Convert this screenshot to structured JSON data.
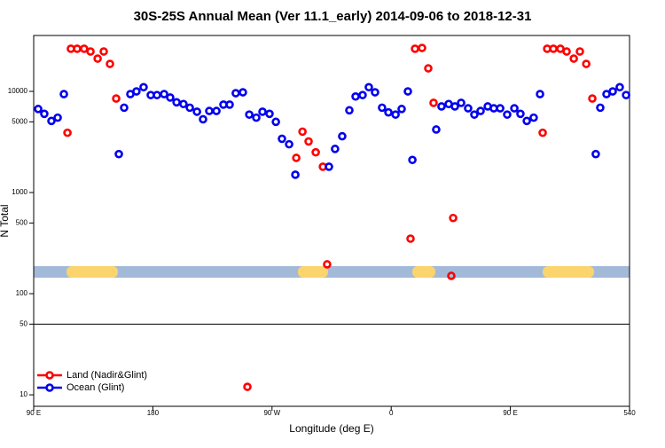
{
  "chart_data": {
    "type": "scatter",
    "title": "30S-25S Annual Mean (Ver 11.1_early)   2014-09-06 to 2018-12-31",
    "x_label": "Longitude (deg E)",
    "y_label": "N Total",
    "log_y": true,
    "legend": "bottom-left",
    "xlim": [
      90,
      540
    ],
    "xticks": [
      {
        "value": 90,
        "label": "90 E"
      },
      180,
      {
        "value": 270,
        "label": "90 W"
      },
      {
        "value": 360,
        "label": "0"
      },
      {
        "value": 450,
        "label": "90 E"
      },
      540
    ],
    "ylim": [
      7.7,
      35700
    ],
    "yticks": [
      10,
      50,
      100,
      500,
      1000,
      5000,
      10000
    ],
    "hlines": [
      50
    ],
    "series": [
      {
        "name": "Land (Nadir&Glint)",
        "color": "#ff0000",
        "x": [
          115.5,
          118.1,
          122.8,
          128.1,
          132.9,
          138.3,
          142.9,
          147.6,
          152.3,
          251.4,
          288.3,
          293,
          297.6,
          303,
          308.4,
          311.6,
          374.6,
          378,
          383.3,
          388,
          392,
          405.4,
          406.8,
          474.4,
          477.8,
          482.5,
          487.8,
          492.5,
          497.9,
          502.5,
          507.3,
          511.9
        ],
        "values": [
          3900,
          26400,
          26400,
          26400,
          24800,
          21100,
          24800,
          18700,
          8500,
          12,
          2200,
          4000,
          3200,
          2500,
          1800,
          195,
          350,
          26400,
          26900,
          16900,
          7700,
          150,
          560,
          3900,
          26400,
          26400,
          26400,
          24800,
          21100,
          24800,
          18700,
          8500
        ]
      },
      {
        "name": "Ocean (Glint)",
        "color": "#0000ee",
        "x": [
          93.4,
          98,
          103.4,
          108.1,
          112.8,
          154.3,
          158.3,
          163,
          167.6,
          173,
          178.4,
          183.1,
          188.5,
          193.1,
          197.9,
          203.1,
          207.9,
          213.3,
          217.9,
          222.6,
          228,
          233.3,
          238,
          242.6,
          248,
          252.8,
          258.1,
          262.8,
          268.1,
          272.9,
          277.5,
          282.9,
          287.6,
          313,
          317.6,
          323,
          328.4,
          333.1,
          338.4,
          343.1,
          347.8,
          353.1,
          357.9,
          363.3,
          367.9,
          372.6,
          376,
          394,
          398,
          403.4,
          408.1,
          412.8,
          418.1,
          422.8,
          427.5,
          432.9,
          437.5,
          442.3,
          447.6,
          453,
          457.6,
          462.4,
          467.6,
          472.4,
          514.5,
          517.9,
          522.6,
          527.3,
          532.6,
          537.4
        ],
        "values": [
          6700,
          6000,
          5100,
          5500,
          9400,
          2400,
          6900,
          9400,
          10000,
          11000,
          9200,
          9200,
          9400,
          8700,
          7800,
          7500,
          6900,
          6300,
          5300,
          6400,
          6400,
          7400,
          7400,
          9600,
          9800,
          5900,
          5500,
          6300,
          6000,
          5000,
          3400,
          3000,
          1500,
          1800,
          2700,
          3600,
          6500,
          8900,
          9200,
          11000,
          9800,
          6900,
          6200,
          5900,
          6700,
          10000,
          2100,
          4200,
          7100,
          7500,
          7100,
          7700,
          6800,
          5900,
          6400,
          7100,
          6800,
          6800,
          5900,
          6800,
          6000,
          5100,
          5500,
          9400,
          2400,
          6900,
          9400,
          10000,
          11000,
          9200
        ]
      }
    ]
  }
}
